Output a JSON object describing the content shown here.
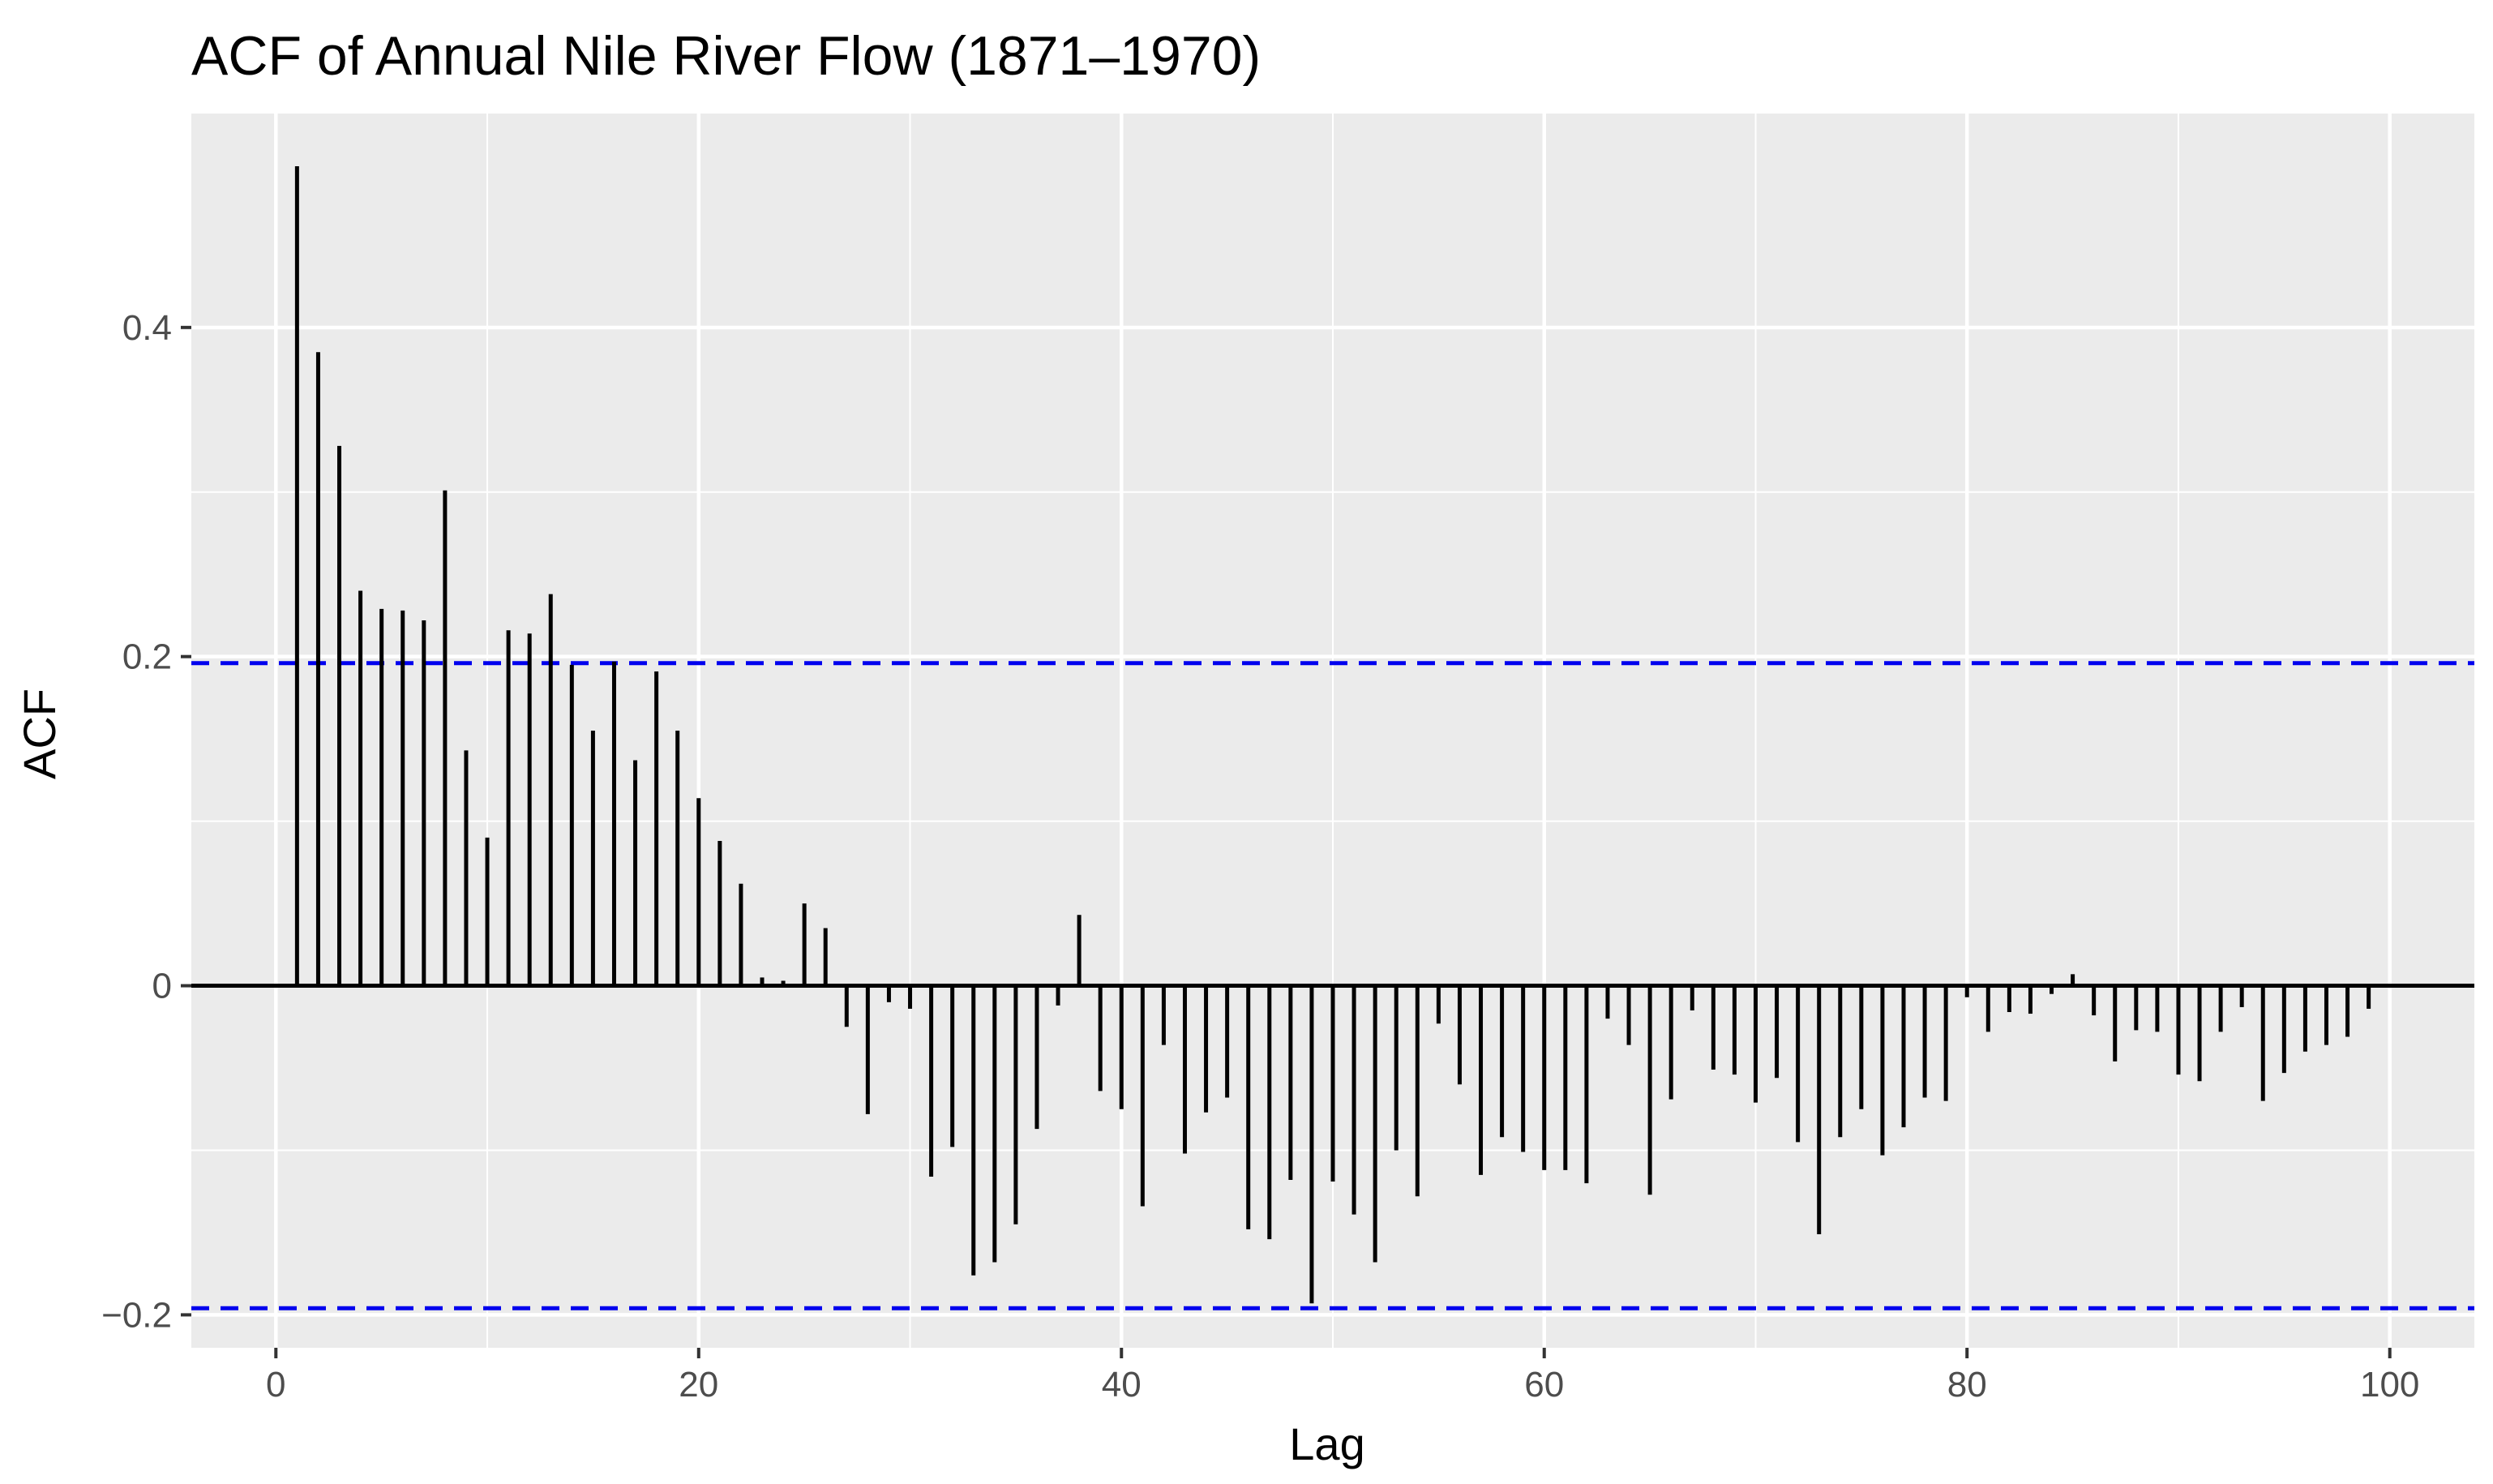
{
  "chart_data": {
    "type": "bar",
    "title": "ACF of Annual Nile River Flow (1871–1970)",
    "xlabel": "Lag",
    "ylabel": "ACF",
    "xlim": [
      -4,
      104
    ],
    "ylim": [
      -0.22,
      0.53
    ],
    "x_ticks": [
      0,
      20,
      40,
      60,
      80,
      100
    ],
    "y_ticks": [
      -0.2,
      0,
      0.2,
      0.4
    ],
    "x_tick_labels": [
      "0",
      "20",
      "40",
      "60",
      "80",
      "100"
    ],
    "y_tick_labels": [
      "−0.2",
      "0",
      "0.2",
      "0.4"
    ],
    "confidence_bound": 0.196,
    "grid": true,
    "colors": {
      "panel": "#ebebeb",
      "grid": "#ffffff",
      "bars": "#000000",
      "bounds": "#0000ee"
    },
    "lags": [
      1,
      2,
      3,
      4,
      5,
      6,
      7,
      8,
      9,
      10,
      11,
      12,
      13,
      14,
      15,
      16,
      17,
      18,
      19,
      20,
      21,
      22,
      23,
      24,
      25,
      26,
      27,
      28,
      29,
      30,
      31,
      32,
      33,
      34,
      35,
      36,
      37,
      38,
      39,
      40,
      41,
      42,
      43,
      44,
      45,
      46,
      47,
      48,
      49,
      50,
      51,
      52,
      53,
      54,
      55,
      56,
      57,
      58,
      59,
      60,
      61,
      62,
      63,
      64,
      65,
      66,
      67,
      68,
      69,
      70,
      71,
      72,
      73,
      74,
      75,
      76,
      77,
      78,
      79,
      80,
      81,
      82,
      83,
      84,
      85,
      86,
      87,
      88,
      89,
      90,
      91,
      92,
      93,
      94,
      95,
      96,
      97,
      98,
      99
    ],
    "values": [
      0.498,
      0.385,
      0.328,
      0.24,
      0.229,
      0.228,
      0.222,
      0.301,
      0.143,
      0.09,
      0.216,
      0.214,
      0.238,
      0.195,
      0.155,
      0.197,
      0.137,
      0.191,
      0.155,
      0.114,
      0.088,
      0.062,
      0.005,
      0.003,
      0.05,
      0.035,
      -0.025,
      -0.078,
      -0.01,
      -0.014,
      -0.116,
      -0.098,
      -0.176,
      -0.168,
      -0.145,
      -0.087,
      -0.012,
      0.043,
      -0.064,
      -0.075,
      -0.134,
      -0.036,
      -0.102,
      -0.077,
      -0.068,
      -0.148,
      -0.154,
      -0.118,
      -0.193,
      -0.119,
      -0.139,
      -0.168,
      -0.1,
      -0.128,
      -0.023,
      -0.06,
      -0.115,
      -0.092,
      -0.101,
      -0.112,
      -0.112,
      -0.12,
      -0.02,
      -0.036,
      -0.127,
      -0.069,
      -0.015,
      -0.051,
      -0.054,
      -0.071,
      -0.056,
      -0.095,
      -0.151,
      -0.092,
      -0.075,
      -0.103,
      -0.086,
      -0.068,
      -0.07,
      -0.007,
      -0.028,
      -0.016,
      -0.017,
      -0.005,
      0.007,
      -0.018,
      -0.046,
      -0.027,
      -0.028,
      -0.054,
      -0.058,
      -0.028,
      -0.013,
      -0.07,
      -0.053,
      -0.04,
      -0.036,
      -0.031,
      -0.014
    ]
  }
}
